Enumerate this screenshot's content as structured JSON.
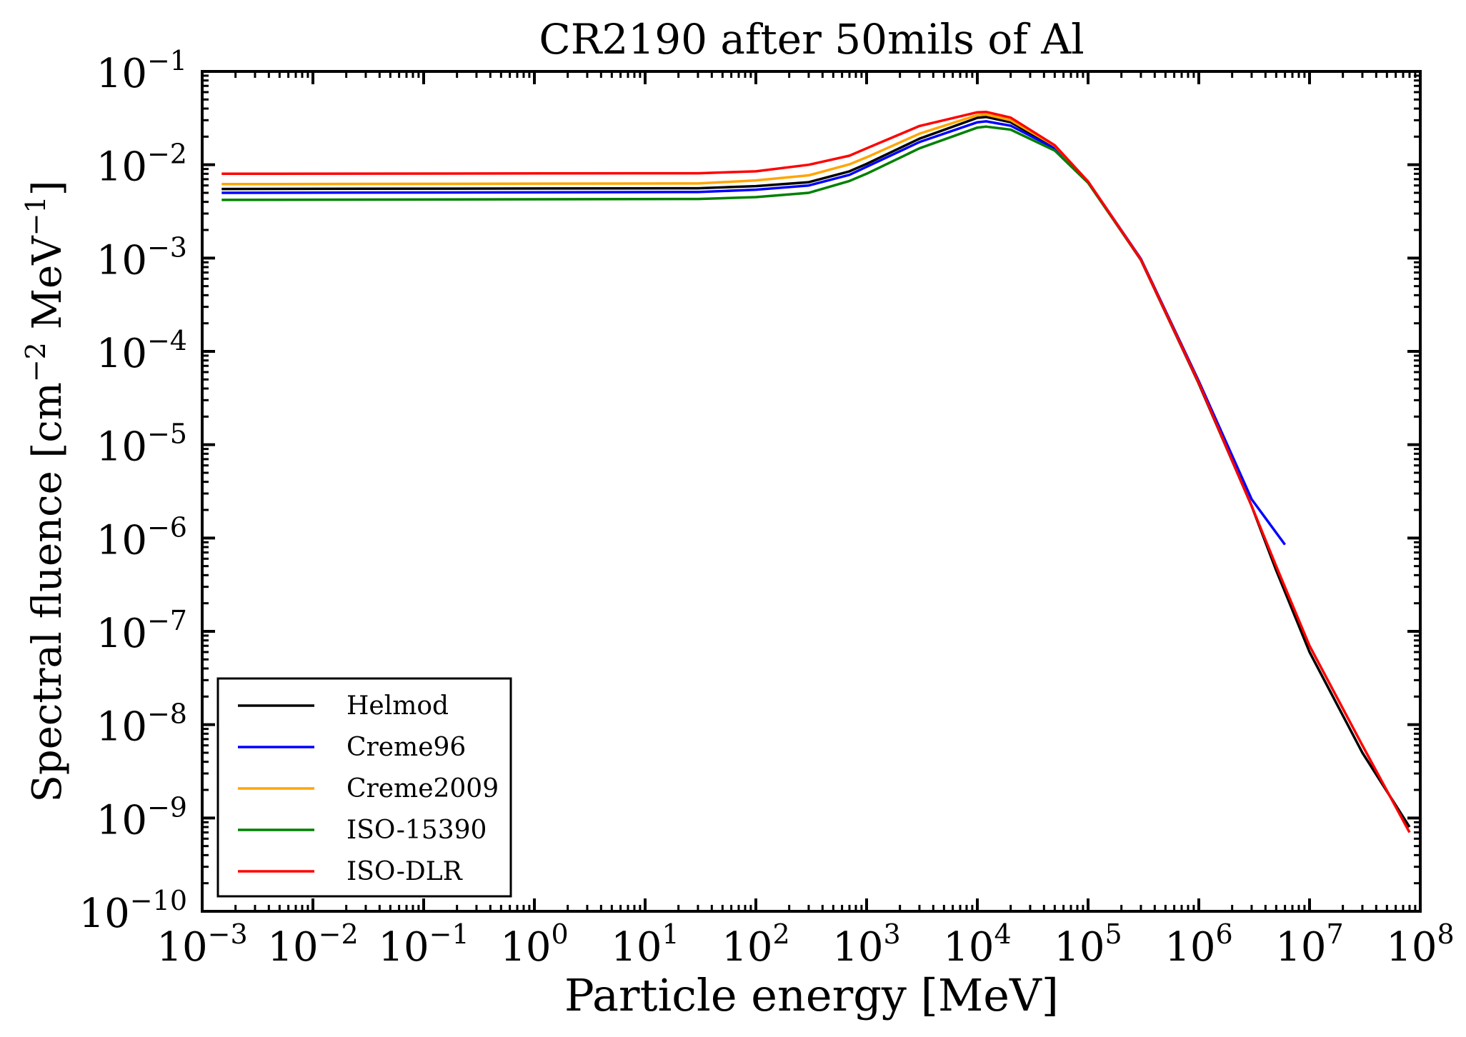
{
  "chart_data": {
    "type": "line",
    "title": "CR2190 after 50mils of Al",
    "xlabel": "Particle energy [MeV]",
    "ylabel": {
      "prefix": "Spectral fluence [cm",
      "exp1": "−2",
      "mid": " MeV",
      "exp2": "−1",
      "suffix": "]"
    },
    "xscale": "log",
    "yscale": "log",
    "xlim": [
      0.001,
      100000000
    ],
    "ylim": [
      1e-10,
      0.1
    ],
    "x_ticks": [
      {
        "base": "10",
        "exp": "−3"
      },
      {
        "base": "10",
        "exp": "−2"
      },
      {
        "base": "10",
        "exp": "−1"
      },
      {
        "base": "10",
        "exp": "0"
      },
      {
        "base": "10",
        "exp": "1"
      },
      {
        "base": "10",
        "exp": "2"
      },
      {
        "base": "10",
        "exp": "3"
      },
      {
        "base": "10",
        "exp": "4"
      },
      {
        "base": "10",
        "exp": "5"
      },
      {
        "base": "10",
        "exp": "6"
      },
      {
        "base": "10",
        "exp": "7"
      },
      {
        "base": "10",
        "exp": "8"
      }
    ],
    "y_ticks": [
      {
        "base": "10",
        "exp": "−10"
      },
      {
        "base": "10",
        "exp": "−9"
      },
      {
        "base": "10",
        "exp": "−8"
      },
      {
        "base": "10",
        "exp": "−7"
      },
      {
        "base": "10",
        "exp": "−6"
      },
      {
        "base": "10",
        "exp": "−5"
      },
      {
        "base": "10",
        "exp": "−4"
      },
      {
        "base": "10",
        "exp": "−3"
      },
      {
        "base": "10",
        "exp": "−2"
      },
      {
        "base": "10",
        "exp": "−1"
      }
    ],
    "grid": false,
    "legend_position": "lower-left",
    "series": [
      {
        "name": "Helmod",
        "color": "#000000",
        "x": [
          0.0015,
          20,
          30,
          100,
          300,
          700,
          1000,
          3000,
          10000,
          12000,
          20000,
          50000,
          100000,
          300000,
          1000000,
          3000000,
          5000000,
          10000000,
          30000000,
          80000000
        ],
        "y": [
          0.0055,
          0.0056,
          0.0056,
          0.0059,
          0.0065,
          0.0085,
          0.0102,
          0.019,
          0.0318,
          0.0325,
          0.0285,
          0.0155,
          0.0065,
          0.00095,
          4.5e-05,
          2.2e-06,
          4.5e-07,
          6e-08,
          5e-09,
          8e-10
        ]
      },
      {
        "name": "Creme96",
        "color": "#0000ff",
        "x": [
          0.0015,
          20,
          30,
          100,
          300,
          700,
          1000,
          3000,
          10000,
          12000,
          20000,
          50000,
          100000,
          300000,
          1000000,
          3000000,
          6000000
        ],
        "y": [
          0.005,
          0.0051,
          0.0051,
          0.0054,
          0.006,
          0.0078,
          0.0095,
          0.0175,
          0.0285,
          0.0292,
          0.0262,
          0.015,
          0.0066,
          0.00098,
          4.8e-05,
          2.6e-06,
          8.5e-07
        ]
      },
      {
        "name": "Creme2009",
        "color": "#ffa500",
        "x": [
          0.0015,
          20,
          30,
          100,
          300,
          700,
          1000,
          3000,
          10000,
          12000,
          20000,
          50000,
          100000,
          300000,
          1000000
        ],
        "y": [
          0.0062,
          0.0063,
          0.0063,
          0.0068,
          0.0077,
          0.0101,
          0.012,
          0.0215,
          0.034,
          0.0345,
          0.03,
          0.016,
          0.0066,
          0.00096,
          4.6e-05
        ]
      },
      {
        "name": "ISO-15390",
        "color": "#008000",
        "x": [
          0.0015,
          20,
          30,
          100,
          300,
          700,
          1000,
          3000,
          10000,
          12000,
          20000,
          50000,
          100000,
          300000,
          1000000
        ],
        "y": [
          0.0042,
          0.0043,
          0.0043,
          0.0045,
          0.005,
          0.0067,
          0.008,
          0.015,
          0.025,
          0.0256,
          0.0238,
          0.0142,
          0.0064,
          0.00096,
          4.6e-05
        ]
      },
      {
        "name": "ISO-DLR",
        "color": "#ff0000",
        "x": [
          0.0015,
          20,
          30,
          100,
          300,
          700,
          1000,
          3000,
          10000,
          12000,
          20000,
          50000,
          100000,
          300000,
          1000000,
          3000000,
          5000000,
          10000000,
          30000000,
          80000000
        ],
        "y": [
          0.008,
          0.0081,
          0.0081,
          0.0085,
          0.01,
          0.0125,
          0.015,
          0.026,
          0.0365,
          0.0368,
          0.032,
          0.0162,
          0.0066,
          0.00096,
          4.6e-05,
          2.2e-06,
          5e-07,
          7e-08,
          6e-09,
          7e-10
        ]
      }
    ]
  }
}
